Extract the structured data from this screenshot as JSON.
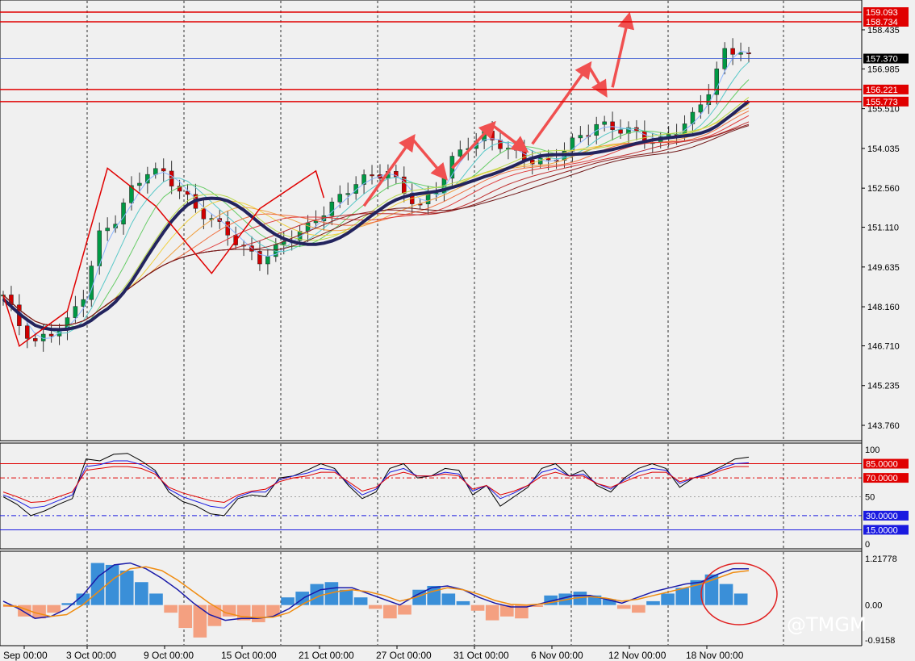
{
  "watermark": "@TMGM",
  "colors": {
    "bg": "#f0f0f0",
    "bull": "#009944",
    "bear": "#d00000",
    "redline": "#e00000",
    "trend": "#23245e",
    "hist_pos": "#3a8fd8",
    "hist_neg": "#f4a080",
    "signal": "#f08c10",
    "macd": "#1a1aa8"
  },
  "x_labels": [
    "Sep 00:00",
    "3 Oct 00:00",
    "9 Oct 00:00",
    "15 Oct 00:00",
    "21 Oct 00:00",
    "27 Oct 00:00",
    "31 Oct 00:00",
    "6 Nov 00:00",
    "12 Nov 00:00",
    "18 Nov 00:00"
  ],
  "price_ticks": [
    "158.435",
    "156.985",
    "155.510",
    "154.035",
    "152.560",
    "151.110",
    "149.635",
    "148.160",
    "146.710",
    "145.235",
    "143.760"
  ],
  "level_tags": [
    {
      "label": "159.093",
      "kind": "red"
    },
    {
      "label": "158.734",
      "kind": "red"
    },
    {
      "label": "157.370",
      "kind": "black"
    },
    {
      "label": "156.221",
      "kind": "red"
    },
    {
      "label": "155.773",
      "kind": "red"
    }
  ],
  "osc_ticks": [
    "100",
    "50",
    "0"
  ],
  "osc_levels": [
    {
      "label": "85.0000",
      "color": "#e00000"
    },
    {
      "label": "70.0000",
      "color": "#e00000"
    },
    {
      "label": "30.0000",
      "color": "#1a1ae0"
    },
    {
      "label": "15.0000",
      "color": "#1a1ae0"
    }
  ],
  "macd_ticks": [
    "1.21778",
    "0.00",
    "-0.9158"
  ],
  "chart_data": [
    {
      "type": "candlestick",
      "ylim": [
        143.76,
        159.09
      ],
      "y_ticks": [
        158.435,
        156.985,
        155.51,
        154.035,
        152.56,
        151.11,
        149.635,
        148.16,
        146.71,
        145.235,
        143.76
      ],
      "x_categories": [
        "Sep 00:00",
        "3 Oct 00:00",
        "9 Oct 00:00",
        "15 Oct 00:00",
        "21 Oct 00:00",
        "27 Oct 00:00",
        "31 Oct 00:00",
        "6 Nov 00:00",
        "12 Nov 00:00",
        "18 Nov 00:00"
      ],
      "price_path": [
        [
          0,
          148.6
        ],
        [
          2,
          147.5
        ],
        [
          4,
          146.8
        ],
        [
          6,
          147.2
        ],
        [
          8,
          147.6
        ],
        [
          10,
          148.6
        ],
        [
          12,
          150.8
        ],
        [
          14,
          151.4
        ],
        [
          16,
          152.5
        ],
        [
          18,
          153.2
        ],
        [
          20,
          153.1
        ],
        [
          22,
          152.5
        ],
        [
          24,
          151.8
        ],
        [
          26,
          151.4
        ],
        [
          28,
          150.9
        ],
        [
          30,
          150.3
        ],
        [
          32,
          149.9
        ],
        [
          34,
          150.3
        ],
        [
          36,
          150.8
        ],
        [
          38,
          151.1
        ],
        [
          40,
          151.7
        ],
        [
          42,
          152.2
        ],
        [
          44,
          152.8
        ],
        [
          46,
          153.0
        ],
        [
          48,
          153.2
        ],
        [
          50,
          152.4
        ],
        [
          52,
          151.9
        ],
        [
          54,
          152.5
        ],
        [
          56,
          153.6
        ],
        [
          58,
          154.2
        ],
        [
          60,
          154.5
        ],
        [
          62,
          154.2
        ],
        [
          64,
          153.8
        ],
        [
          66,
          153.6
        ],
        [
          68,
          153.5
        ],
        [
          70,
          154.0
        ],
        [
          72,
          154.5
        ],
        [
          74,
          154.9
        ],
        [
          76,
          154.8
        ],
        [
          78,
          154.7
        ],
        [
          80,
          154.4
        ],
        [
          82,
          154.3
        ],
        [
          84,
          154.7
        ],
        [
          86,
          155.2
        ],
        [
          88,
          156.2
        ],
        [
          90,
          157.6
        ],
        [
          92,
          157.7
        ],
        [
          93,
          157.4
        ]
      ],
      "trend_lines": [
        [
          [
            0,
            148.6
          ],
          [
            2,
            146.7
          ],
          [
            8,
            148.0
          ],
          [
            13,
            153.3
          ],
          [
            19,
            151.9
          ],
          [
            26,
            149.4
          ],
          [
            32,
            151.8
          ],
          [
            39,
            153.2
          ],
          [
            40,
            152.2
          ]
        ]
      ],
      "arrows": [
        [
          [
            45,
            151.9
          ],
          [
            51,
            154.4
          ]
        ],
        [
          [
            51,
            154.4
          ],
          [
            55,
            153.0
          ]
        ],
        [
          [
            56,
            153.3
          ],
          [
            61,
            154.9
          ]
        ],
        [
          [
            61,
            154.9
          ],
          [
            65,
            154.0
          ]
        ],
        [
          [
            66,
            154.2
          ],
          [
            73,
            157.1
          ]
        ],
        [
          [
            73,
            157.1
          ],
          [
            75,
            156.1
          ]
        ],
        [
          [
            76,
            156.3
          ],
          [
            78,
            158.9
          ]
        ]
      ],
      "levels": [
        159.093,
        158.734,
        157.37,
        156.221,
        155.773
      ]
    },
    {
      "type": "line",
      "ylim": [
        0,
        100
      ],
      "y_ticks": [
        100,
        50,
        0
      ],
      "levels": [
        85,
        70,
        30,
        15
      ],
      "series": [
        {
          "values": [
            50,
            42,
            30,
            35,
            42,
            48,
            90,
            88,
            95,
            96,
            88,
            78,
            55,
            45,
            40,
            32,
            30,
            48,
            52,
            50,
            70,
            72,
            78,
            85,
            80,
            62,
            48,
            55,
            80,
            85,
            70,
            72,
            80,
            78,
            52,
            62,
            40,
            50,
            60,
            80,
            85,
            72,
            78,
            62,
            55,
            70,
            80,
            85,
            80,
            60,
            70,
            75,
            82,
            90,
            92
          ]
        },
        {
          "values": [
            52,
            46,
            38,
            40,
            46,
            52,
            82,
            84,
            88,
            88,
            84,
            76,
            58,
            50,
            45,
            40,
            38,
            50,
            55,
            55,
            68,
            72,
            75,
            80,
            78,
            64,
            52,
            58,
            76,
            80,
            72,
            72,
            76,
            74,
            56,
            62,
            48,
            54,
            62,
            76,
            80,
            72,
            74,
            64,
            58,
            68,
            76,
            80,
            78,
            64,
            70,
            74,
            80,
            85,
            86
          ]
        },
        {
          "values": [
            55,
            50,
            44,
            45,
            50,
            55,
            78,
            80,
            82,
            82,
            80,
            74,
            60,
            54,
            50,
            46,
            44,
            52,
            56,
            58,
            66,
            70,
            72,
            76,
            76,
            66,
            56,
            60,
            72,
            76,
            72,
            72,
            74,
            72,
            58,
            62,
            52,
            56,
            62,
            72,
            76,
            72,
            72,
            64,
            60,
            66,
            72,
            76,
            76,
            66,
            70,
            72,
            78,
            82,
            82
          ]
        }
      ]
    },
    {
      "type": "bar",
      "ylim": [
        -0.9158,
        1.21778
      ],
      "y_ticks": [
        1.21778,
        0.0,
        -0.9158
      ],
      "values": [
        -0.05,
        -0.3,
        -0.35,
        -0.2,
        0.05,
        0.3,
        1.1,
        1.05,
        0.9,
        0.6,
        0.3,
        -0.2,
        -0.6,
        -0.85,
        -0.55,
        -0.3,
        -0.4,
        -0.45,
        -0.3,
        0.2,
        0.35,
        0.55,
        0.6,
        0.4,
        0.2,
        -0.1,
        -0.35,
        -0.25,
        0.4,
        0.5,
        0.3,
        0.1,
        -0.15,
        -0.4,
        -0.3,
        -0.35,
        -0.05,
        0.25,
        0.3,
        0.35,
        0.25,
        0.15,
        -0.1,
        -0.2,
        0.1,
        0.3,
        0.45,
        0.65,
        0.8,
        0.55,
        0.3
      ],
      "series": [
        {
          "values": [
            0.1,
            -0.1,
            -0.35,
            -0.3,
            -0.1,
            0.25,
            0.75,
            1.05,
            1.1,
            0.95,
            0.7,
            0.4,
            0.05,
            -0.25,
            -0.4,
            -0.35,
            -0.35,
            -0.3,
            -0.1,
            0.2,
            0.4,
            0.45,
            0.45,
            0.3,
            0.15,
            0.0,
            0.25,
            0.45,
            0.5,
            0.4,
            0.2,
            0.05,
            -0.05,
            -0.05,
            0.05,
            0.15,
            0.25,
            0.25,
            0.15,
            0.05,
            0.2,
            0.35,
            0.45,
            0.55,
            0.6,
            0.8,
            0.95,
            0.95
          ]
        },
        {
          "values": [
            0.0,
            -0.05,
            -0.2,
            -0.3,
            -0.25,
            0.0,
            0.35,
            0.7,
            0.95,
            1.0,
            0.9,
            0.65,
            0.35,
            0.05,
            -0.2,
            -0.3,
            -0.33,
            -0.32,
            -0.2,
            0.05,
            0.25,
            0.35,
            0.4,
            0.35,
            0.25,
            0.1,
            0.2,
            0.35,
            0.45,
            0.4,
            0.28,
            0.12,
            0.02,
            0.0,
            0.03,
            0.1,
            0.18,
            0.22,
            0.18,
            0.1,
            0.15,
            0.25,
            0.35,
            0.45,
            0.55,
            0.7,
            0.85,
            0.9
          ]
        }
      ]
    }
  ]
}
